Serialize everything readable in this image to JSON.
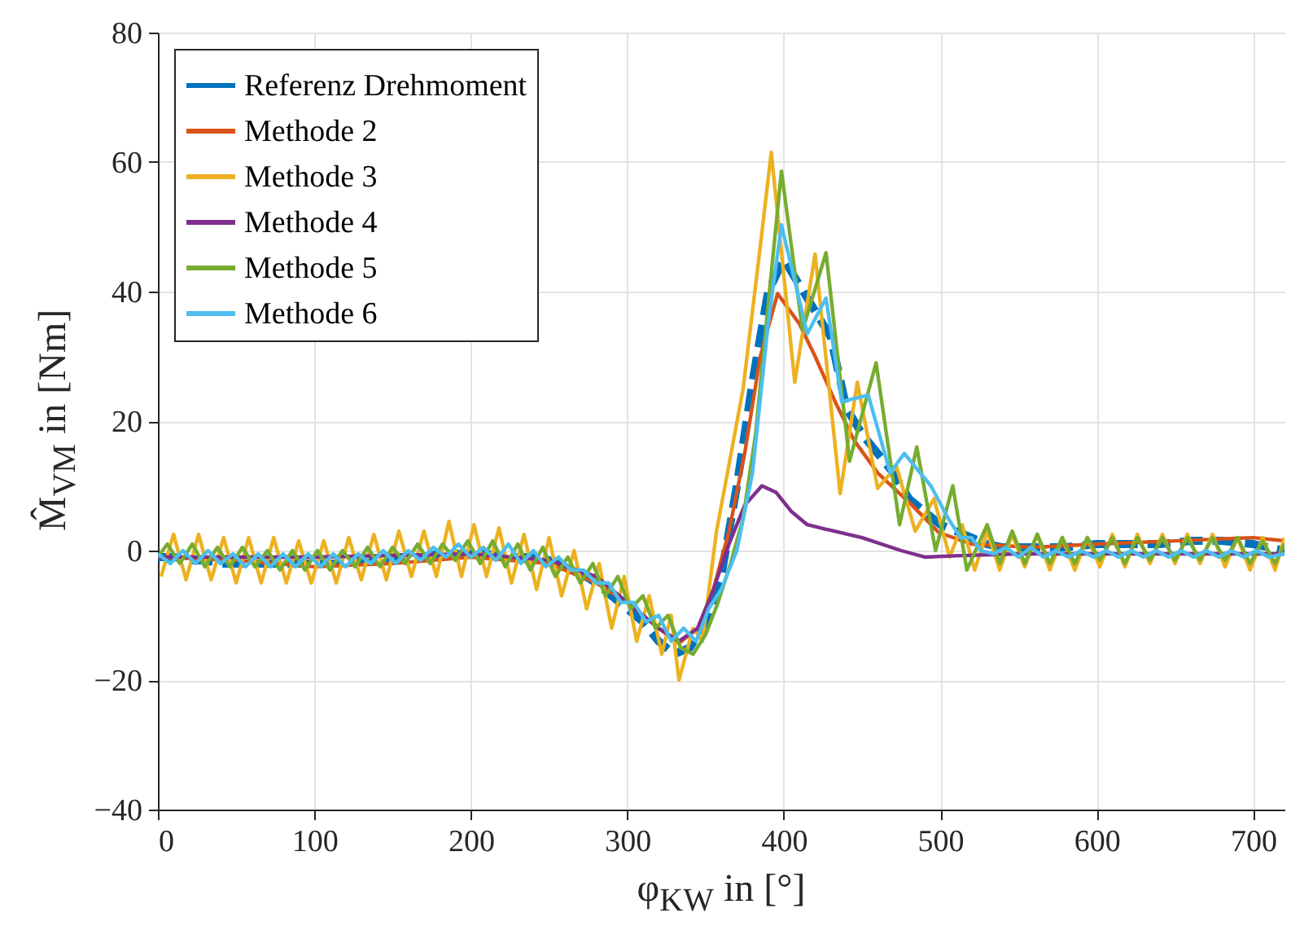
{
  "chart_data": {
    "type": "line",
    "xlabel": "φ$_{KW}$ in [°]",
    "ylabel": "M̂$_{VM}$ in [Nm]",
    "xlim": [
      0,
      720
    ],
    "xticks": [
      0,
      100,
      200,
      300,
      400,
      500,
      600,
      700
    ],
    "ylim": [
      -40,
      80
    ],
    "yticks": [
      -40,
      -20,
      0,
      20,
      40,
      60,
      80
    ],
    "grid": true,
    "legend": "top left",
    "series": [
      {
        "name": "Referenz Drehmoment",
        "color": "#0072bd",
        "line_style": "dashed",
        "x": [
          0,
          10,
          20,
          30,
          40,
          50,
          60,
          70,
          80,
          90,
          100,
          110,
          120,
          130,
          140,
          150,
          160,
          170,
          180,
          190,
          200,
          210,
          220,
          230,
          240,
          250,
          260,
          270,
          280,
          290,
          300,
          310,
          320,
          330,
          340,
          350,
          360,
          370,
          380,
          390,
          400,
          410,
          420,
          430,
          440,
          450,
          460,
          470,
          480,
          490,
          500,
          510,
          520,
          530,
          540,
          560,
          580,
          600,
          620,
          640,
          660,
          680,
          700,
          720
        ],
        "values": [
          -1,
          -1,
          -1.5,
          -1.5,
          -2,
          -2,
          -2,
          -2,
          -2,
          -2,
          -2,
          -2,
          -2,
          -1.5,
          -1.5,
          -1,
          -1,
          -1,
          -0.5,
          -0.5,
          -0.5,
          -0.5,
          -1,
          -1,
          -1,
          -1.5,
          -2.5,
          -3.5,
          -5,
          -7,
          -9,
          -11,
          -14,
          -16,
          -15,
          -11,
          -4,
          10,
          26,
          40,
          45,
          41,
          37,
          33,
          22,
          18,
          15,
          12,
          8,
          6,
          4,
          3,
          2,
          1,
          0.5,
          0.5,
          0.5,
          1,
          1,
          1,
          1.5,
          1.5,
          1,
          0
        ]
      },
      {
        "name": "Methode 2",
        "color": "#d95319",
        "x": [
          0,
          50,
          100,
          150,
          200,
          250,
          280,
          300,
          320,
          333,
          345,
          355,
          365,
          375,
          385,
          396,
          410,
          420,
          433,
          445,
          460,
          482,
          499,
          520,
          560,
          600,
          650,
          700,
          720
        ],
        "values": [
          -1,
          -1.5,
          -2.5,
          -2,
          -1,
          -2,
          -5,
          -8,
          -12,
          -14.3,
          -12,
          -6,
          3,
          15,
          30,
          39.7,
          35,
          30,
          22.9,
          17,
          12,
          7,
          2.8,
          1,
          0.5,
          1,
          1.5,
          2,
          1.5
        ]
      },
      {
        "name": "Methode 3",
        "color": "#edb120",
        "x": [
          2,
          10,
          18,
          26,
          34,
          42,
          50,
          58,
          66,
          74,
          82,
          90,
          98,
          106,
          114,
          122,
          130,
          138,
          146,
          154,
          162,
          170,
          178,
          186,
          194,
          202,
          210,
          218,
          226,
          234,
          242,
          250,
          258,
          266,
          274,
          282,
          290,
          298,
          306,
          314,
          322,
          328,
          333,
          342,
          348,
          357,
          364,
          374,
          384,
          392,
          407,
          420,
          436,
          447,
          460,
          472,
          484,
          496,
          506,
          514,
          522,
          530,
          538,
          546,
          554,
          562,
          570,
          578,
          586,
          594,
          602,
          610,
          618,
          626,
          634,
          642,
          650,
          658,
          666,
          674,
          682,
          690,
          698,
          706,
          714,
          720
        ],
        "values": [
          -4,
          2.5,
          -4.5,
          2.5,
          -4.5,
          2,
          -5,
          2,
          -5,
          2,
          -5,
          1.5,
          -5,
          1.5,
          -5,
          2,
          -4.5,
          2.5,
          -4.5,
          3,
          -4,
          3,
          -4,
          4.5,
          -4,
          4,
          -4,
          3.5,
          -5,
          2.5,
          -6,
          2,
          -7,
          0,
          -9,
          -2,
          -12,
          -4,
          -14,
          -7,
          -16,
          -10,
          -20,
          -12,
          -14,
          3,
          12,
          25,
          45,
          61.5,
          26,
          45.8,
          8.8,
          26,
          9.6,
          13,
          3,
          8,
          -1,
          4,
          -3,
          3,
          -3,
          2.5,
          -2.5,
          2.5,
          -3,
          2,
          -3,
          2,
          -2.5,
          2.5,
          -2.5,
          2.5,
          -2,
          2.5,
          -2,
          2.5,
          -2,
          2.5,
          -2.5,
          2,
          -3,
          2,
          -3,
          2
        ]
      },
      {
        "name": "Methode 4",
        "color": "#7e2f8e",
        "x": [
          0,
          100,
          200,
          250,
          280,
          300,
          320,
          333,
          345,
          355,
          365,
          375,
          386,
          395,
          405,
          415,
          427,
          450,
          475,
          490,
          510,
          550,
          650,
          720
        ],
        "values": [
          -1,
          -1,
          -0.5,
          -1.5,
          -4,
          -8,
          -12,
          -14,
          -12,
          -6,
          1,
          7,
          10,
          9,
          6,
          4,
          3.3,
          2,
          0,
          -1,
          -0.8,
          -0.5,
          -0.5,
          -0.5
        ]
      },
      {
        "name": "Methode 5",
        "color": "#77ac30",
        "x": [
          0,
          6,
          14,
          22,
          30,
          38,
          46,
          54,
          62,
          70,
          78,
          86,
          94,
          102,
          110,
          118,
          126,
          134,
          142,
          150,
          158,
          166,
          174,
          182,
          190,
          198,
          206,
          214,
          222,
          230,
          238,
          246,
          254,
          262,
          270,
          278,
          286,
          294,
          302,
          310,
          318,
          326,
          334,
          342,
          350,
          358,
          366,
          374,
          382,
          390,
          398.5,
          412,
          427,
          442,
          459,
          474,
          485,
          497,
          508,
          517,
          530,
          538,
          546,
          554,
          562,
          570,
          578,
          586,
          594,
          602,
          610,
          618,
          626,
          634,
          642,
          650,
          658,
          666,
          674,
          682,
          690,
          698,
          706,
          714,
          720
        ],
        "values": [
          -1,
          1,
          -2,
          1,
          -2.5,
          0.5,
          -2.5,
          0.5,
          -2.5,
          0,
          -3,
          0,
          -3,
          0,
          -3,
          0,
          -2.5,
          0.5,
          -2.5,
          0.5,
          -2,
          1,
          -2,
          1,
          -1.5,
          1.5,
          -2,
          1.5,
          -2.5,
          1,
          -3,
          0.5,
          -4,
          -1,
          -5,
          -2,
          -7,
          -4,
          -9,
          -7,
          -12,
          -10,
          -15,
          -16,
          -13,
          -8,
          -2,
          5,
          18,
          38,
          58.6,
          34,
          46,
          13.8,
          29,
          4,
          16,
          0,
          10,
          -3,
          4,
          -2,
          3,
          -2,
          2.5,
          -2,
          2,
          -2,
          2,
          -1.5,
          2,
          -2,
          2,
          -1.5,
          2,
          -1.5,
          2,
          -1.5,
          2,
          -1.5,
          2,
          -2,
          1.5,
          -2,
          1
        ]
      },
      {
        "name": "Methode 6",
        "color": "#4dbeee",
        "x": [
          0,
          8,
          16,
          24,
          32,
          40,
          48,
          56,
          64,
          72,
          80,
          88,
          96,
          104,
          112,
          120,
          128,
          136,
          144,
          152,
          160,
          168,
          176,
          184,
          192,
          200,
          208,
          216,
          224,
          232,
          240,
          248,
          256,
          264,
          272,
          280,
          288,
          296,
          304,
          312,
          320,
          328,
          336,
          344,
          352,
          360,
          370,
          380,
          390,
          398.5,
          415,
          427,
          437,
          454,
          468,
          477,
          494,
          505,
          513,
          520,
          526,
          534,
          542,
          550,
          558,
          566,
          574,
          582,
          590,
          598,
          606,
          614,
          622,
          630,
          638,
          646,
          654,
          662,
          670,
          678,
          686,
          694,
          702,
          710,
          720
        ],
        "values": [
          -0.5,
          -2,
          0,
          -2,
          0,
          -2,
          -0.5,
          -2.5,
          -0.5,
          -2.5,
          -0.5,
          -2.5,
          -0.5,
          -2.5,
          -0.5,
          -2.5,
          -0.5,
          -2,
          0,
          -2,
          0,
          -1.5,
          0.5,
          -1,
          1,
          -1,
          0.5,
          -1.5,
          1,
          -2,
          0,
          -2.5,
          -1,
          -3,
          -3,
          -5,
          -5,
          -8,
          -8,
          -11,
          -10,
          -14,
          -12,
          -14,
          -9,
          -6,
          0,
          12,
          35,
          50.3,
          33.5,
          39,
          23,
          24,
          12,
          15,
          10,
          5,
          2,
          2,
          0,
          -0.5,
          0.5,
          -1,
          0.5,
          -1,
          0,
          -1,
          0,
          -1,
          0,
          -1,
          0,
          -1,
          0,
          -1,
          0,
          -1,
          0,
          -1,
          0,
          -1,
          0,
          -1,
          -0.5
        ]
      }
    ]
  }
}
